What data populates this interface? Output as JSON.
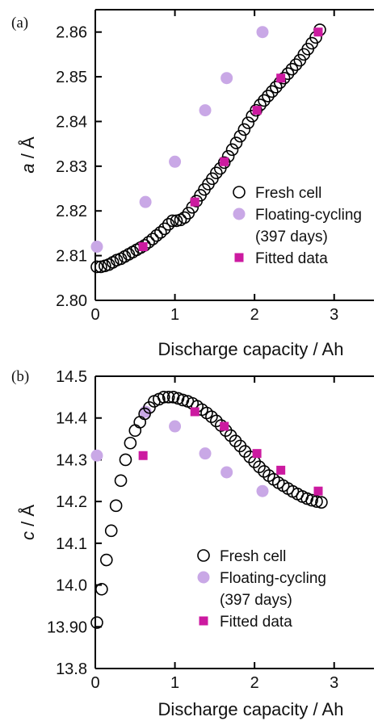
{
  "chart_data": [
    {
      "type": "scatter",
      "panel_label": "(a)",
      "xlabel": "Discharge capacity / Ah",
      "ylabel_var": "a",
      "ylabel_unit": " / Å",
      "xlim": [
        0,
        3.5
      ],
      "ylim": [
        2.8,
        2.865
      ],
      "xticks": [
        0,
        1,
        2,
        3
      ],
      "xtick_labels": [
        "0",
        "1",
        "2",
        "3"
      ],
      "yticks": [
        2.8,
        2.81,
        2.82,
        2.83,
        2.84,
        2.85,
        2.86
      ],
      "ytick_labels": [
        "2.80",
        "2.81",
        "2.82",
        "2.83",
        "2.84",
        "2.85",
        "2.86"
      ],
      "legend_position": "lower-right",
      "series": [
        {
          "name": "Fresh cell",
          "marker": "open-circle",
          "color": "#000000",
          "x": [
            0.02,
            0.07,
            0.12,
            0.17,
            0.22,
            0.27,
            0.32,
            0.37,
            0.42,
            0.47,
            0.52,
            0.57,
            0.62,
            0.67,
            0.72,
            0.77,
            0.82,
            0.87,
            0.92,
            0.97,
            1.02,
            1.07,
            1.12,
            1.17,
            1.22,
            1.27,
            1.32,
            1.37,
            1.42,
            1.47,
            1.52,
            1.57,
            1.62,
            1.67,
            1.72,
            1.77,
            1.82,
            1.87,
            1.92,
            1.97,
            2.02,
            2.07,
            2.12,
            2.17,
            2.22,
            2.27,
            2.32,
            2.37,
            2.42,
            2.47,
            2.52,
            2.57,
            2.62,
            2.67,
            2.72,
            2.77,
            2.82
          ],
          "y": [
            2.8075,
            2.8075,
            2.8077,
            2.808,
            2.8085,
            2.809,
            2.8093,
            2.8098,
            2.8103,
            2.8108,
            2.8113,
            2.8118,
            2.8123,
            2.813,
            2.8137,
            2.8145,
            2.8152,
            2.816,
            2.817,
            2.8178,
            2.8178,
            2.818,
            2.8185,
            2.8195,
            2.8208,
            2.8222,
            2.8235,
            2.8248,
            2.826,
            2.8272,
            2.8285,
            2.8295,
            2.8308,
            2.8322,
            2.8337,
            2.8352,
            2.8367,
            2.8382,
            2.8397,
            2.8412,
            2.8425,
            2.8437,
            2.8447,
            2.8457,
            2.8467,
            2.8477,
            2.8487,
            2.8497,
            2.8507,
            2.8517,
            2.8527,
            2.8537,
            2.855,
            2.8562,
            2.8575,
            2.8588,
            2.8605
          ]
        },
        {
          "name": "Floating-cycling",
          "name_line2": "(397 days)",
          "marker": "filled-circle",
          "color": "#c9a8e6",
          "x": [
            0.02,
            0.63,
            1.0,
            1.38,
            1.65,
            2.1
          ],
          "y": [
            2.812,
            2.822,
            2.831,
            2.8425,
            2.8497,
            2.86
          ]
        },
        {
          "name": "Fitted data",
          "marker": "filled-square",
          "color": "#cc1aa0",
          "x": [
            0.6,
            1.25,
            1.62,
            2.03,
            2.33,
            2.8
          ],
          "y": [
            2.812,
            2.822,
            2.831,
            2.8425,
            2.8497,
            2.86
          ]
        }
      ]
    },
    {
      "type": "scatter",
      "panel_label": "(b)",
      "xlabel": "Discharge capacity / Ah",
      "ylabel_var": "c",
      "ylabel_unit": " / Å",
      "xlim": [
        0,
        3.5
      ],
      "ylim": [
        13.8,
        14.5
      ],
      "xticks": [
        0,
        1,
        2,
        3
      ],
      "xtick_labels": [
        "0",
        "1",
        "2",
        "3"
      ],
      "yticks": [
        13.8,
        13.9,
        14.0,
        14.1,
        14.2,
        14.3,
        14.4,
        14.5
      ],
      "ytick_labels": [
        "13.8",
        "13.90",
        "14.0",
        "14.1",
        "14.2",
        "14.3",
        "14.4",
        "14.5"
      ],
      "legend_position": "lower-right",
      "series": [
        {
          "name": "Fresh cell",
          "marker": "open-circle",
          "color": "#000000",
          "x": [
            0.02,
            0.08,
            0.14,
            0.2,
            0.26,
            0.32,
            0.38,
            0.44,
            0.5,
            0.56,
            0.62,
            0.68,
            0.74,
            0.8,
            0.86,
            0.92,
            0.98,
            1.04,
            1.1,
            1.16,
            1.22,
            1.28,
            1.34,
            1.4,
            1.46,
            1.52,
            1.58,
            1.64,
            1.7,
            1.76,
            1.82,
            1.88,
            1.94,
            2.0,
            2.06,
            2.12,
            2.18,
            2.24,
            2.3,
            2.36,
            2.42,
            2.48,
            2.54,
            2.6,
            2.66,
            2.72,
            2.78,
            2.84
          ],
          "y": [
            13.91,
            13.99,
            14.06,
            14.13,
            14.19,
            14.25,
            14.3,
            14.34,
            14.37,
            14.39,
            14.41,
            14.425,
            14.44,
            14.445,
            14.45,
            14.45,
            14.45,
            14.447,
            14.443,
            14.44,
            14.435,
            14.428,
            14.42,
            14.412,
            14.403,
            14.393,
            14.382,
            14.37,
            14.358,
            14.345,
            14.333,
            14.32,
            14.307,
            14.295,
            14.283,
            14.272,
            14.262,
            14.253,
            14.245,
            14.238,
            14.231,
            14.224,
            14.218,
            14.212,
            14.207,
            14.203,
            14.2,
            14.198
          ]
        },
        {
          "name": "Floating-cycling",
          "name_line2": "(397 days)",
          "marker": "filled-circle",
          "color": "#c9a8e6",
          "x": [
            0.02,
            0.63,
            1.0,
            1.38,
            1.65,
            2.1
          ],
          "y": [
            14.31,
            14.415,
            14.38,
            14.315,
            14.27,
            14.225
          ]
        },
        {
          "name": "Fitted data",
          "marker": "filled-square",
          "color": "#cc1aa0",
          "x": [
            0.6,
            1.25,
            1.62,
            2.03,
            2.33,
            2.8
          ],
          "y": [
            14.31,
            14.415,
            14.38,
            14.315,
            14.275,
            14.225
          ]
        }
      ]
    }
  ]
}
